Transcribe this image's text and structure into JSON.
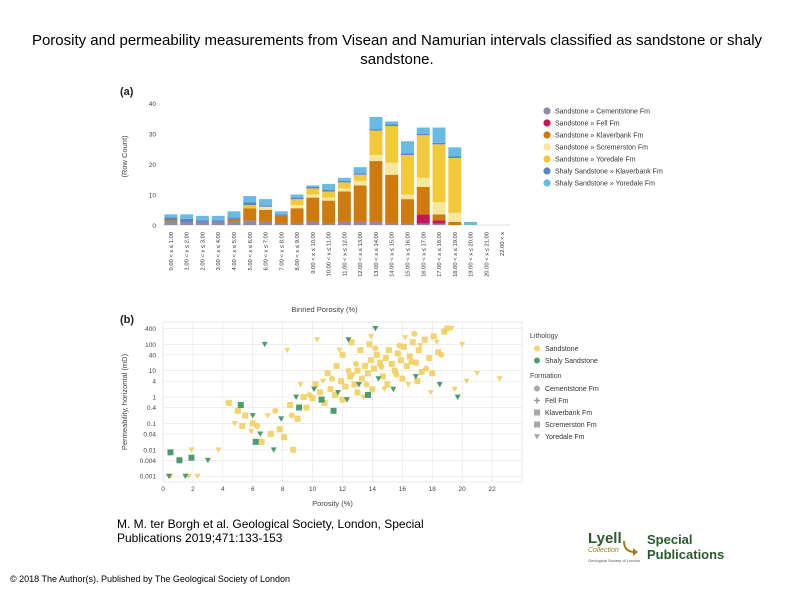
{
  "title": "Porosity and permeability measurements from Visean and Namurian intervals classified as sandstone or shaly sandstone.",
  "citation": {
    "line1": "M. M. ter Borgh et al. Geological Society, London, Special",
    "line2": "Publications 2019;471:133-153"
  },
  "copyright": "© 2018 The Author(s). Published by The Geological Society of London",
  "logo": {
    "name": "Lyell",
    "subname": "Collection",
    "tagline": "Geological Society of London",
    "label": "Special Publications"
  },
  "colors": {
    "Sandstone » Cementstone Fm": "#8f8aab",
    "Sandstone » Fell Fm": "#c8155a",
    "Sandstone » Klaverbank Fm": "#cf7a0e",
    "Sandstone » Scremerston Fm": "#f6e79a",
    "Sandstone » Yoredale Fm": "#f2c93a",
    "Shaly Sandstone » Klaverbank Fm": "#5a86c0",
    "Shaly Sandstone » Yoredale Fm": "#6ab9e6",
    "sandstone_point": "#f1cc55",
    "shaly_point": "#2f8a55"
  },
  "chart_data": [
    {
      "type": "bar",
      "panel": "(a)",
      "stacked": true,
      "xlabel": "Binned Porosity (%)",
      "ylabel": "(Row Count)",
      "ylim": [
        0,
        45
      ],
      "yticks": [
        0,
        10,
        20,
        30,
        40
      ],
      "grid": false,
      "legend": "right",
      "categories": [
        "0.00 < x ≤ 1.00",
        "1.00 < x ≤ 2.00",
        "2.00 < x ≤ 3.00",
        "3.00 < x ≤ 4.00",
        "4.00 < x ≤ 5.00",
        "5.00 < x ≤ 6.00",
        "6.00 < x ≤ 7.00",
        "7.00 < x ≤ 8.00",
        "8.00 < x ≤ 9.00",
        "9.00 < x ≤ 10.00",
        "10.00 < x ≤ 11.00",
        "11.00 < x ≤ 12.00",
        "12.00 < x ≤ 13.00",
        "13.00 < x ≤ 14.00",
        "14.00 < x ≤ 15.00",
        "15.00 < x ≤ 16.00",
        "16.00 < x ≤ 17.00",
        "17.00 < x ≤ 18.00",
        "18.00 < x ≤ 19.00",
        "19.00 < x ≤ 20.00",
        "20.00 < x ≤ 21.00",
        "22.00 < x"
      ],
      "series": [
        {
          "name": "Sandstone » Cementstone Fm",
          "values": [
            1,
            1,
            1,
            1,
            1,
            1.5,
            1,
            0.5,
            0.5,
            1,
            0.5,
            1,
            1,
            1,
            0.5,
            0.5,
            0.5,
            0.5,
            0,
            0,
            0,
            0
          ]
        },
        {
          "name": "Sandstone » Fell Fm",
          "values": [
            0,
            0,
            0,
            0,
            0,
            0,
            0,
            0,
            0,
            0,
            0,
            0,
            0,
            0,
            0,
            0,
            3,
            1,
            0,
            0,
            0,
            0
          ]
        },
        {
          "name": "Sandstone » Klaverbank Fm",
          "values": [
            0.5,
            0,
            0,
            0,
            1,
            4,
            4,
            2.5,
            5,
            8,
            7.5,
            10,
            12,
            20,
            16,
            8,
            9,
            2,
            1,
            0,
            0,
            0
          ]
        },
        {
          "name": "Sandstone » Scremerston Fm",
          "values": [
            0,
            0,
            0,
            0,
            0,
            0,
            1,
            0,
            1,
            1,
            1,
            1,
            1.5,
            2,
            4,
            1.5,
            3,
            4,
            3,
            0,
            0,
            0
          ]
        },
        {
          "name": "Sandstone » Yoredale Fm",
          "values": [
            0,
            0,
            0,
            0,
            0,
            1,
            0,
            0,
            2,
            2,
            2,
            2,
            2,
            8,
            12,
            13,
            14,
            19,
            18,
            0,
            0,
            0
          ]
        },
        {
          "name": "Shaly Sandstone » Klaverbank Fm",
          "values": [
            1,
            1,
            0.5,
            0.5,
            0.5,
            1,
            0.5,
            0.5,
            0.5,
            0.5,
            0.5,
            0.5,
            0.5,
            0.5,
            0.5,
            0.5,
            0.5,
            0.5,
            0.5,
            0,
            0,
            0
          ]
        },
        {
          "name": "Shaly Sandstone » Yoredale Fm",
          "values": [
            1,
            1.5,
            1.5,
            1.5,
            2,
            2,
            2,
            1,
            1,
            0.5,
            2,
            1,
            2,
            4,
            1,
            4,
            2,
            5,
            3,
            1,
            0,
            0
          ]
        }
      ]
    },
    {
      "type": "scatter",
      "panel": "(b)",
      "xlabel": "Porosity (%)",
      "ylabel": "Permeability, horizontal (mD)",
      "xlim": [
        0,
        24
      ],
      "xticks": [
        0,
        2,
        4,
        6,
        8,
        10,
        12,
        14,
        16,
        18,
        20,
        22
      ],
      "ylog": true,
      "yticks": [
        400,
        100,
        40,
        10,
        4,
        1,
        0.4,
        0.1,
        0.04,
        0.01,
        0.004,
        0.001
      ],
      "grid": true,
      "legend": "right",
      "legend_groups": [
        {
          "title": "Lithology",
          "items": [
            {
              "label": "Sandstone",
              "marker": "circle",
              "color": "#f1cc55"
            },
            {
              "label": "Shaly Sandstone",
              "marker": "circle",
              "color": "#2f8a55"
            }
          ]
        },
        {
          "title": "Formation",
          "items": [
            {
              "label": "Cementstone Fm",
              "marker": "circle",
              "color": "#999999"
            },
            {
              "label": "Fell Fm",
              "marker": "plus",
              "color": "#999999"
            },
            {
              "label": "Klaverbank Fm",
              "marker": "square",
              "color": "#999999"
            },
            {
              "label": "Scremerston Fm",
              "marker": "square",
              "color": "#999999"
            },
            {
              "label": "Yoredale Fm",
              "marker": "triangle",
              "color": "#999999"
            }
          ]
        }
      ],
      "series": [
        {
          "name": "Sandstone",
          "marker": "square",
          "points": [
            [
              4.4,
              0.6
            ],
            [
              5.0,
              0.3
            ],
            [
              5.5,
              0.2
            ],
            [
              5.3,
              0.08
            ],
            [
              6.0,
              0.1
            ],
            [
              6.6,
              0.02
            ],
            [
              7.2,
              0.04
            ],
            [
              7.8,
              0.06
            ],
            [
              8.1,
              0.03
            ],
            [
              8.7,
              0.01
            ],
            [
              9.0,
              0.15
            ],
            [
              9.6,
              0.4
            ],
            [
              10.0,
              0.9
            ],
            [
              10.5,
              1.5
            ],
            [
              10.8,
              0.6
            ],
            [
              11.2,
              2
            ],
            [
              11.5,
              1.2
            ],
            [
              11.9,
              4
            ],
            [
              12.2,
              2.5
            ],
            [
              12.5,
              6
            ],
            [
              12.8,
              3
            ],
            [
              13.0,
              10
            ],
            [
              13.3,
              5
            ],
            [
              13.5,
              15
            ],
            [
              13.7,
              8
            ],
            [
              13.9,
              25
            ],
            [
              14.1,
              12
            ],
            [
              14.3,
              40
            ],
            [
              14.5,
              20
            ],
            [
              14.7,
              6
            ],
            [
              14.9,
              30
            ],
            [
              15.1,
              60
            ],
            [
              15.3,
              18
            ],
            [
              15.5,
              10
            ],
            [
              15.7,
              45
            ],
            [
              15.9,
              25
            ],
            [
              16.1,
              80
            ],
            [
              16.3,
              15
            ],
            [
              16.5,
              35
            ],
            [
              16.7,
              120
            ],
            [
              16.9,
              20
            ],
            [
              17.1,
              60
            ],
            [
              17.3,
              9
            ],
            [
              17.5,
              150
            ],
            [
              17.8,
              30
            ],
            [
              18.1,
              200
            ],
            [
              18.4,
              50
            ],
            [
              18.8,
              300
            ],
            [
              19.0,
              400
            ],
            [
              12.0,
              40
            ],
            [
              12.6,
              120
            ],
            [
              13.2,
              60
            ],
            [
              13.8,
              100
            ],
            [
              11.0,
              8
            ],
            [
              11.6,
              15
            ],
            [
              10.2,
              3
            ],
            [
              9.4,
              1
            ],
            [
              8.5,
              0.5
            ],
            [
              15.0,
              3
            ],
            [
              16.0,
              5
            ],
            [
              17.0,
              4
            ],
            [
              18.0,
              8
            ],
            [
              14.0,
              2
            ],
            [
              13.0,
              1.5
            ],
            [
              12.0,
              0.8
            ]
          ]
        },
        {
          "name": "Sandstone",
          "marker": "circle",
          "points": [
            [
              6.3,
              0.08
            ],
            [
              7.5,
              0.3
            ],
            [
              8.6,
              0.2
            ],
            [
              9.8,
              1.2
            ],
            [
              11.3,
              5
            ],
            [
              12.4,
              10
            ],
            [
              13.6,
              3
            ],
            [
              14.6,
              14
            ],
            [
              15.6,
              7
            ],
            [
              16.6,
              22
            ],
            [
              17.6,
              12
            ],
            [
              18.6,
              40
            ],
            [
              12.9,
              18
            ],
            [
              14.2,
              70
            ],
            [
              15.8,
              90
            ],
            [
              16.8,
              250
            ]
          ]
        },
        {
          "name": "Sandstone",
          "marker": "triangle",
          "points": [
            [
              0.5,
              0.001
            ],
            [
              1.7,
              0.001
            ],
            [
              2.3,
              0.001
            ],
            [
              1.9,
              0.01
            ],
            [
              3.7,
              0.01
            ],
            [
              4.8,
              0.1
            ],
            [
              5.9,
              0.05
            ],
            [
              7.0,
              0.2
            ],
            [
              9.2,
              3
            ],
            [
              10.7,
              4
            ],
            [
              12.7,
              7
            ],
            [
              13.4,
              1
            ],
            [
              14.8,
              2
            ],
            [
              16.4,
              3
            ],
            [
              17.9,
              1.5
            ],
            [
              19.5,
              2
            ],
            [
              20.3,
              4
            ],
            [
              21.0,
              8
            ],
            [
              22.5,
              5
            ],
            [
              19.3,
              400
            ],
            [
              18.3,
              120
            ],
            [
              17.2,
              90
            ],
            [
              11.8,
              60
            ],
            [
              10.3,
              150
            ],
            [
              8.3,
              60
            ],
            [
              13.9,
              200
            ],
            [
              16.2,
              180
            ],
            [
              20.0,
              100
            ]
          ]
        },
        {
          "name": "Shaly Sandstone",
          "marker": "triangle",
          "points": [
            [
              0.4,
              0.001
            ],
            [
              1.5,
              0.001
            ],
            [
              3.0,
              0.004
            ],
            [
              6.0,
              0.2
            ],
            [
              6.5,
              0.04
            ],
            [
              7.4,
              0.01
            ],
            [
              7.9,
              0.15
            ],
            [
              8.9,
              1
            ],
            [
              10.1,
              2
            ],
            [
              11.7,
              1.5
            ],
            [
              12.3,
              0.8
            ],
            [
              13.1,
              3
            ],
            [
              14.4,
              5
            ],
            [
              15.4,
              2
            ],
            [
              16.9,
              6
            ],
            [
              18.5,
              3
            ],
            [
              19.7,
              1
            ],
            [
              6.8,
              100
            ],
            [
              12.4,
              150
            ],
            [
              14.2,
              400
            ]
          ]
        },
        {
          "name": "Shaly Sandstone",
          "marker": "square",
          "points": [
            [
              0.5,
              0.008
            ],
            [
              1.1,
              0.004
            ],
            [
              1.9,
              0.005
            ],
            [
              5.2,
              0.5
            ],
            [
              6.2,
              0.02
            ],
            [
              9.1,
              0.4
            ],
            [
              10.6,
              0.8
            ],
            [
              11.4,
              0.3
            ],
            [
              13.7,
              1.2
            ]
          ]
        }
      ]
    }
  ]
}
